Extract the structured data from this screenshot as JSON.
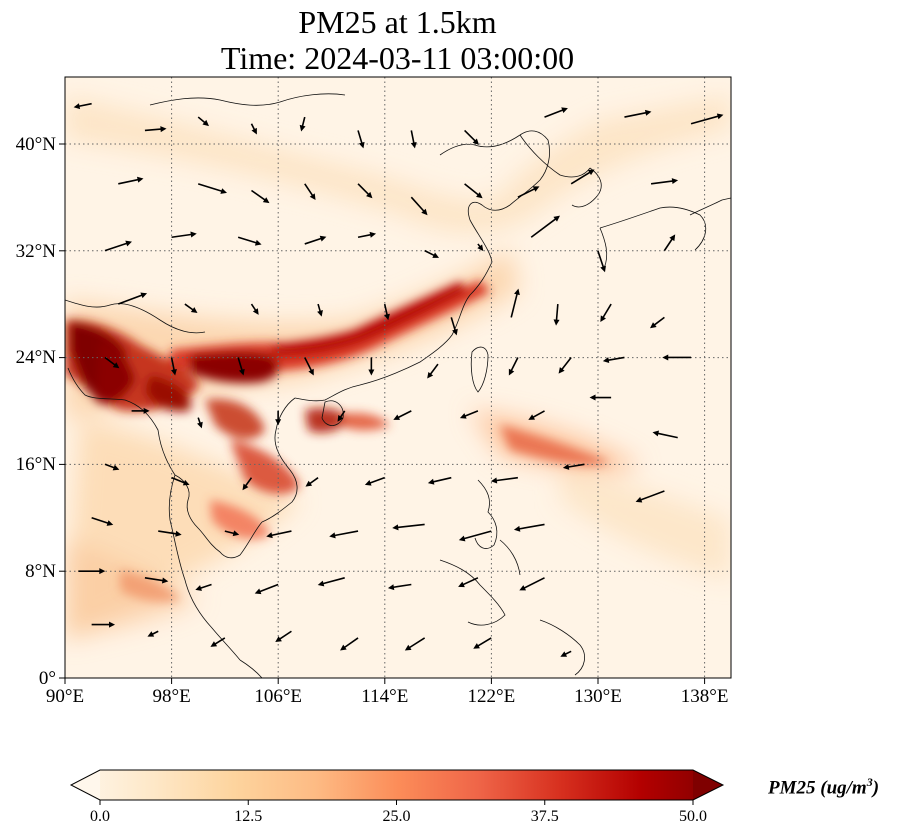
{
  "title": {
    "line1": "PM25 at 1.5km",
    "line2": "Time: 2024-03-11 03:00:00"
  },
  "axes": {
    "lon_min": 90,
    "lon_max": 140,
    "lat_min": 0,
    "lat_max": 45,
    "xticks": [
      {
        "value": 90,
        "label": "90°E"
      },
      {
        "value": 98,
        "label": "98°E"
      },
      {
        "value": 106,
        "label": "106°E"
      },
      {
        "value": 114,
        "label": "114°E"
      },
      {
        "value": 122,
        "label": "122°E"
      },
      {
        "value": 130,
        "label": "130°E"
      },
      {
        "value": 138,
        "label": "138°E"
      }
    ],
    "yticks": [
      {
        "value": 0,
        "label": "0°"
      },
      {
        "value": 8,
        "label": "8°N"
      },
      {
        "value": 16,
        "label": "16°N"
      },
      {
        "value": 24,
        "label": "24°N"
      },
      {
        "value": 32,
        "label": "32°N"
      },
      {
        "value": 40,
        "label": "40°N"
      }
    ],
    "grid": true,
    "grid_style": "dotted"
  },
  "colorbar": {
    "label_main": "PM25 (ug/m",
    "label_sup": "3",
    "label_tail": ")",
    "min": 0,
    "max": 50,
    "ticks": [
      "0.0",
      "12.5",
      "25.0",
      "37.5",
      "50.0"
    ],
    "colormap": "OrRd",
    "colors": [
      "#fff7ec",
      "#fee8c8",
      "#fdd49e",
      "#fdbb84",
      "#fc8d59",
      "#ef6548",
      "#d7301f",
      "#b30000",
      "#7f0000"
    ],
    "extend": "both"
  },
  "chart_data": {
    "type": "heatmap",
    "variable": "PM25",
    "units": "ug/m^3",
    "level": "1.5km",
    "time": "2024-03-11 03:00:00",
    "high_concentration_bands": [
      {
        "lon": 90.5,
        "lat": 24.5,
        "value": 50
      },
      {
        "lon": 93,
        "lat": 23,
        "value": 50
      },
      {
        "lon": 94,
        "lat": 21,
        "value": 48
      },
      {
        "lon": 96,
        "lat": 20,
        "value": 45
      },
      {
        "lon": 98,
        "lat": 20.5,
        "value": 46
      },
      {
        "lon": 100,
        "lat": 22,
        "value": 50
      },
      {
        "lon": 102.5,
        "lat": 22,
        "value": 50
      },
      {
        "lon": 104,
        "lat": 23.5,
        "value": 47
      },
      {
        "lon": 106,
        "lat": 24,
        "value": 45
      },
      {
        "lon": 108,
        "lat": 24,
        "value": 42
      },
      {
        "lon": 110,
        "lat": 25,
        "value": 38
      },
      {
        "lon": 112,
        "lat": 26,
        "value": 36
      },
      {
        "lon": 114,
        "lat": 27,
        "value": 40
      },
      {
        "lon": 116,
        "lat": 28.5,
        "value": 42
      },
      {
        "lon": 118,
        "lat": 29.5,
        "value": 40
      },
      {
        "lon": 120,
        "lat": 31,
        "value": 35
      },
      {
        "lon": 104,
        "lat": 18,
        "value": 35
      },
      {
        "lon": 106,
        "lat": 15,
        "value": 32
      },
      {
        "lon": 110,
        "lat": 19.5,
        "value": 38
      },
      {
        "lon": 113,
        "lat": 20,
        "value": 30
      },
      {
        "lon": 126,
        "lat": 18,
        "value": 25
      },
      {
        "lon": 130,
        "lat": 16.5,
        "value": 22
      },
      {
        "lon": 98,
        "lat": 7,
        "value": 18
      }
    ],
    "wind_vectors": [
      {
        "lon": 92,
        "lat": 43,
        "u": -1,
        "v": -0.2
      },
      {
        "lon": 96,
        "lat": 41,
        "u": 1.2,
        "v": 0.1
      },
      {
        "lon": 100,
        "lat": 42,
        "u": 0.6,
        "v": -0.5
      },
      {
        "lon": 104,
        "lat": 41.5,
        "u": 0.3,
        "v": -0.6
      },
      {
        "lon": 108,
        "lat": 42,
        "u": -0.2,
        "v": -0.8
      },
      {
        "lon": 112,
        "lat": 41,
        "u": 0.3,
        "v": -1
      },
      {
        "lon": 116,
        "lat": 41,
        "u": 0.2,
        "v": -1
      },
      {
        "lon": 120,
        "lat": 41,
        "u": 0.8,
        "v": -0.8
      },
      {
        "lon": 126,
        "lat": 42,
        "u": 1.3,
        "v": 0.5
      },
      {
        "lon": 132,
        "lat": 42,
        "u": 1.5,
        "v": 0.3
      },
      {
        "lon": 137,
        "lat": 41.5,
        "u": 1.8,
        "v": 0.5
      },
      {
        "lon": 94,
        "lat": 37,
        "u": 1.4,
        "v": 0.3
      },
      {
        "lon": 100,
        "lat": 37,
        "u": 1.6,
        "v": -0.5
      },
      {
        "lon": 104,
        "lat": 36.5,
        "u": 1,
        "v": -0.7
      },
      {
        "lon": 108,
        "lat": 37,
        "u": 0.6,
        "v": -0.9
      },
      {
        "lon": 112,
        "lat": 37,
        "u": 0.8,
        "v": -0.8
      },
      {
        "lon": 116,
        "lat": 36,
        "u": 0.9,
        "v": -1
      },
      {
        "lon": 120,
        "lat": 37,
        "u": 1,
        "v": -0.8
      },
      {
        "lon": 124,
        "lat": 36,
        "u": 1.2,
        "v": 0.6
      },
      {
        "lon": 128,
        "lat": 37,
        "u": 1.3,
        "v": 0.8
      },
      {
        "lon": 134,
        "lat": 37,
        "u": 1.5,
        "v": 0.2
      },
      {
        "lon": 93,
        "lat": 32,
        "u": 1.5,
        "v": 0.5
      },
      {
        "lon": 98,
        "lat": 33,
        "u": 1.4,
        "v": 0.2
      },
      {
        "lon": 103,
        "lat": 33,
        "u": 1.3,
        "v": -0.4
      },
      {
        "lon": 108,
        "lat": 32.5,
        "u": 1.2,
        "v": 0.4
      },
      {
        "lon": 112,
        "lat": 33,
        "u": 1,
        "v": 0.2
      },
      {
        "lon": 117,
        "lat": 32,
        "u": 0.8,
        "v": -0.4
      },
      {
        "lon": 121,
        "lat": 32.5,
        "u": 0.3,
        "v": -0.4
      },
      {
        "lon": 125,
        "lat": 33,
        "u": 1.6,
        "v": 1.2
      },
      {
        "lon": 130,
        "lat": 32,
        "u": 0.4,
        "v": -1.2
      },
      {
        "lon": 135,
        "lat": 32,
        "u": 0.6,
        "v": 0.9
      },
      {
        "lon": 94,
        "lat": 28,
        "u": 1.6,
        "v": 0.6
      },
      {
        "lon": 99,
        "lat": 28,
        "u": 0.7,
        "v": -0.5
      },
      {
        "lon": 104,
        "lat": 28,
        "u": 0.4,
        "v": -0.6
      },
      {
        "lon": 109,
        "lat": 28,
        "u": 0.2,
        "v": -0.7
      },
      {
        "lon": 114,
        "lat": 28,
        "u": 0.2,
        "v": -0.9
      },
      {
        "lon": 119,
        "lat": 27,
        "u": 0.3,
        "v": -1
      },
      {
        "lon": 123.5,
        "lat": 27,
        "u": 0.4,
        "v": 1.6
      },
      {
        "lon": 127,
        "lat": 28,
        "u": -0.1,
        "v": -1.2
      },
      {
        "lon": 131,
        "lat": 28,
        "u": -0.6,
        "v": -1
      },
      {
        "lon": 135,
        "lat": 27,
        "u": -0.8,
        "v": -0.6
      },
      {
        "lon": 93,
        "lat": 24,
        "u": 0.8,
        "v": -0.6
      },
      {
        "lon": 98,
        "lat": 24,
        "u": 0.2,
        "v": -1
      },
      {
        "lon": 103,
        "lat": 24,
        "u": 0.3,
        "v": -1
      },
      {
        "lon": 108,
        "lat": 24,
        "u": 0.5,
        "v": -1
      },
      {
        "lon": 113,
        "lat": 24,
        "u": 0,
        "v": -1
      },
      {
        "lon": 118,
        "lat": 23.5,
        "u": -0.6,
        "v": -0.8
      },
      {
        "lon": 124,
        "lat": 24,
        "u": -0.5,
        "v": -1
      },
      {
        "lon": 128,
        "lat": 24,
        "u": -0.7,
        "v": -0.9
      },
      {
        "lon": 132,
        "lat": 24,
        "u": -1.2,
        "v": -0.2
      },
      {
        "lon": 137,
        "lat": 24,
        "u": -1.6,
        "v": 0
      },
      {
        "lon": 95,
        "lat": 20,
        "u": 1,
        "v": 0
      },
      {
        "lon": 100,
        "lat": 19.5,
        "u": 0.2,
        "v": -0.6
      },
      {
        "lon": 106,
        "lat": 20,
        "u": 0,
        "v": -0.8
      },
      {
        "lon": 111,
        "lat": 20,
        "u": -0.4,
        "v": -0.6
      },
      {
        "lon": 116,
        "lat": 20,
        "u": -1,
        "v": -0.5
      },
      {
        "lon": 121,
        "lat": 20,
        "u": -1,
        "v": -0.4
      },
      {
        "lon": 126,
        "lat": 20,
        "u": -0.9,
        "v": -0.5
      },
      {
        "lon": 131,
        "lat": 21,
        "u": -1.2,
        "v": 0
      },
      {
        "lon": 136,
        "lat": 18,
        "u": -1.4,
        "v": 0.3
      },
      {
        "lon": 93,
        "lat": 16,
        "u": 0.8,
        "v": -0.3
      },
      {
        "lon": 98,
        "lat": 15,
        "u": 1,
        "v": -0.4
      },
      {
        "lon": 104,
        "lat": 15,
        "u": -0.5,
        "v": -0.7
      },
      {
        "lon": 109,
        "lat": 15,
        "u": -0.7,
        "v": -0.5
      },
      {
        "lon": 114,
        "lat": 15,
        "u": -1.1,
        "v": -0.4
      },
      {
        "lon": 119,
        "lat": 15,
        "u": -1.3,
        "v": -0.3
      },
      {
        "lon": 124,
        "lat": 15,
        "u": -1.5,
        "v": -0.2
      },
      {
        "lon": 129,
        "lat": 16,
        "u": -1.2,
        "v": -0.2
      },
      {
        "lon": 135,
        "lat": 14,
        "u": -1.6,
        "v": -0.6
      },
      {
        "lon": 92,
        "lat": 12,
        "u": 1.2,
        "v": -0.4
      },
      {
        "lon": 97,
        "lat": 11,
        "u": 1.3,
        "v": -0.2
      },
      {
        "lon": 102,
        "lat": 11,
        "u": 0.8,
        "v": -0.2
      },
      {
        "lon": 107,
        "lat": 11,
        "u": -1.4,
        "v": -0.3
      },
      {
        "lon": 112,
        "lat": 11,
        "u": -1.6,
        "v": -0.3
      },
      {
        "lon": 117,
        "lat": 11.5,
        "u": -1.8,
        "v": -0.2
      },
      {
        "lon": 122,
        "lat": 11,
        "u": -1.8,
        "v": -0.5
      },
      {
        "lon": 126,
        "lat": 11.5,
        "u": -1.7,
        "v": -0.3
      },
      {
        "lon": 91,
        "lat": 8,
        "u": 1.5,
        "v": 0
      },
      {
        "lon": 96,
        "lat": 7.5,
        "u": 1.3,
        "v": -0.2
      },
      {
        "lon": 101,
        "lat": 7,
        "u": -0.9,
        "v": -0.3
      },
      {
        "lon": 106,
        "lat": 7,
        "u": -1.3,
        "v": -0.5
      },
      {
        "lon": 111,
        "lat": 7.5,
        "u": -1.5,
        "v": -0.4
      },
      {
        "lon": 116,
        "lat": 7,
        "u": -1.3,
        "v": -0.2
      },
      {
        "lon": 121,
        "lat": 7.5,
        "u": -1.1,
        "v": -0.5
      },
      {
        "lon": 126,
        "lat": 7.5,
        "u": -1.4,
        "v": -0.7
      },
      {
        "lon": 92,
        "lat": 4,
        "u": 1.3,
        "v": 0
      },
      {
        "lon": 97,
        "lat": 3.5,
        "u": -0.6,
        "v": -0.3
      },
      {
        "lon": 102,
        "lat": 3,
        "u": -0.8,
        "v": -0.5
      },
      {
        "lon": 107,
        "lat": 3.5,
        "u": -0.9,
        "v": -0.6
      },
      {
        "lon": 112,
        "lat": 3,
        "u": -1,
        "v": -0.7
      },
      {
        "lon": 117,
        "lat": 3,
        "u": -1.1,
        "v": -0.7
      },
      {
        "lon": 122,
        "lat": 3,
        "u": -1,
        "v": -0.6
      },
      {
        "lon": 128,
        "lat": 2,
        "u": -0.6,
        "v": -0.3
      }
    ]
  }
}
